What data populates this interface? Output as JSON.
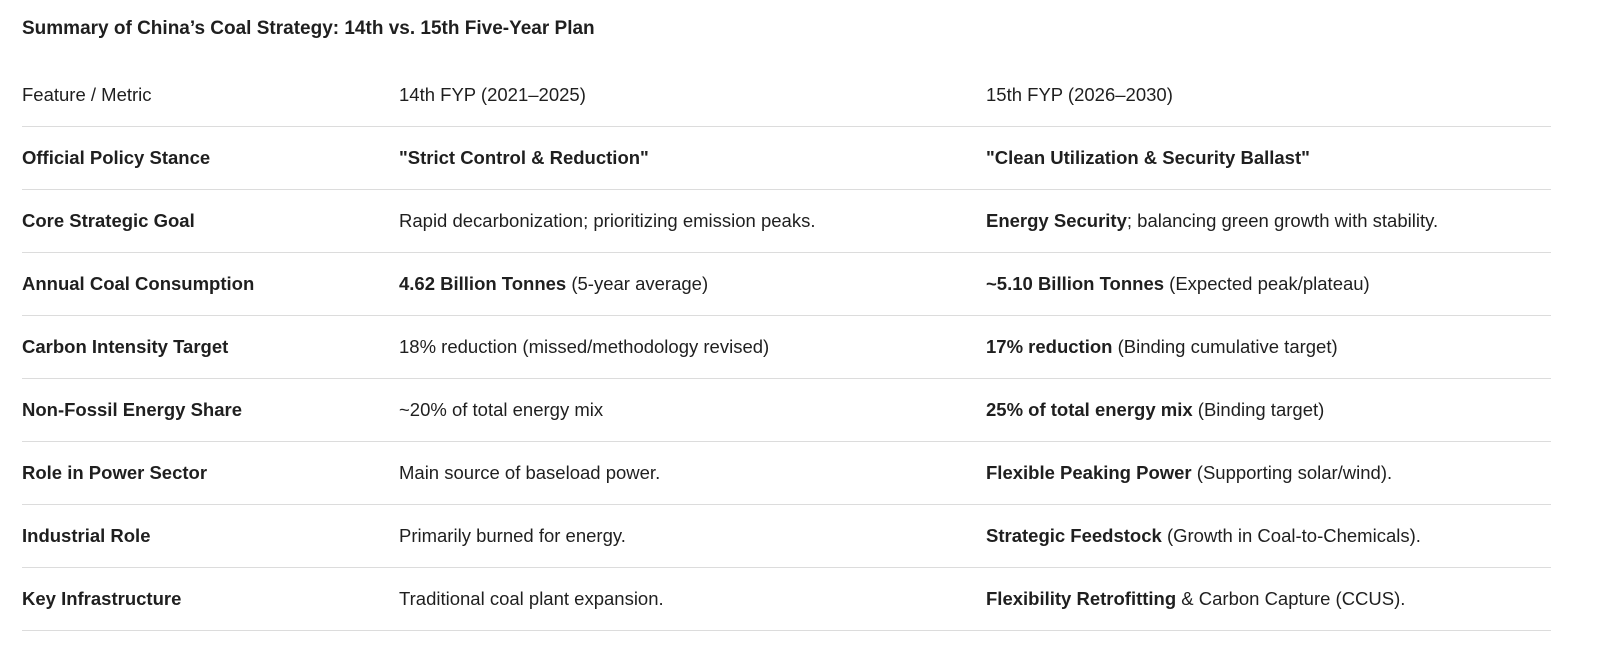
{
  "title": "Summary of China’s Coal Strategy: 14th vs. 15th Five-Year Plan",
  "table": {
    "header": [
      "Feature / Metric",
      "14th FYP (2021–2025)",
      "15th FYP (2026–2030)"
    ],
    "rows": [
      [
        [
          {
            "text": "Official Policy Stance",
            "bold": true
          }
        ],
        [
          {
            "text": "\"Strict Control & Reduction\"",
            "bold": true
          }
        ],
        [
          {
            "text": "\"Clean Utilization & Security Ballast\"",
            "bold": true
          }
        ]
      ],
      [
        [
          {
            "text": "Core Strategic Goal",
            "bold": true
          }
        ],
        [
          {
            "text": "Rapid decarbonization; prioritizing emission peaks."
          }
        ],
        [
          {
            "text": "Energy Security",
            "bold": true
          },
          {
            "text": "; balancing green growth with stability."
          }
        ]
      ],
      [
        [
          {
            "text": "Annual Coal Consumption",
            "bold": true
          }
        ],
        [
          {
            "text": "4.62 Billion Tonnes",
            "bold": true
          },
          {
            "text": " (5-year average)"
          }
        ],
        [
          {
            "text": "~5.10 Billion Tonnes",
            "bold": true
          },
          {
            "text": " (Expected peak/plateau)"
          }
        ]
      ],
      [
        [
          {
            "text": "Carbon Intensity Target",
            "bold": true
          }
        ],
        [
          {
            "text": "18% reduction (missed/methodology revised)"
          }
        ],
        [
          {
            "text": "17% reduction",
            "bold": true
          },
          {
            "text": " (Binding cumulative target)"
          }
        ]
      ],
      [
        [
          {
            "text": "Non-Fossil Energy Share",
            "bold": true
          }
        ],
        [
          {
            "text": "~20% of total energy mix"
          }
        ],
        [
          {
            "text": "25% of total energy mix",
            "bold": true
          },
          {
            "text": " (Binding target)"
          }
        ]
      ],
      [
        [
          {
            "text": "Role in Power Sector",
            "bold": true
          }
        ],
        [
          {
            "text": "Main source of baseload power."
          }
        ],
        [
          {
            "text": "Flexible Peaking Power",
            "bold": true
          },
          {
            "text": " (Supporting solar/wind)."
          }
        ]
      ],
      [
        [
          {
            "text": "Industrial Role",
            "bold": true
          }
        ],
        [
          {
            "text": "Primarily burned for energy."
          }
        ],
        [
          {
            "text": "Strategic Feedstock",
            "bold": true
          },
          {
            "text": " (Growth in Coal-to-Chemicals)."
          }
        ]
      ],
      [
        [
          {
            "text": "Key Infrastructure",
            "bold": true
          }
        ],
        [
          {
            "text": "Traditional coal plant expansion."
          }
        ],
        [
          {
            "text": "Flexibility Retrofitting",
            "bold": true
          },
          {
            "text": " & Carbon Capture (CCUS)."
          }
        ]
      ]
    ]
  }
}
